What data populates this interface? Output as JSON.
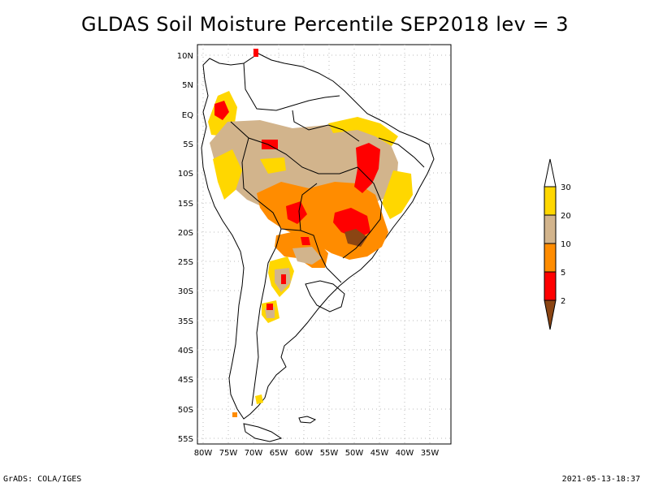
{
  "title": "GLDAS Soil Moisture Percentile SEP2018 lev = 3",
  "footer": {
    "left": "GrADS: COLA/IGES",
    "right": "2021-05-13-18:37"
  },
  "axes": {
    "lat_ticks": [
      "10N",
      "5N",
      "EQ",
      "5S",
      "10S",
      "15S",
      "20S",
      "25S",
      "30S",
      "35S",
      "40S",
      "45S",
      "50S",
      "55S"
    ],
    "lon_ticks": [
      "80W",
      "75W",
      "70W",
      "65W",
      "60W",
      "55W",
      "50W",
      "45W",
      "40W",
      "35W"
    ]
  },
  "legend": {
    "levels": [
      "2",
      "5",
      "10",
      "20",
      "30"
    ],
    "colors": {
      "below_2": "#8b4513",
      "2_5": "#ff0000",
      "5_10": "#ff8c00",
      "10_20": "#d2b48c",
      "20_30": "#ffd700",
      "above_30": "#ffffff"
    }
  },
  "map_data": {
    "region": "South America",
    "field": "soil moisture percentile",
    "dryness_areas": [
      {
        "name": "northern-colombia-andes",
        "level": "2_5"
      },
      {
        "name": "amazon-basin",
        "level": "10_20"
      },
      {
        "name": "central-brazil",
        "level": "5_10"
      },
      {
        "name": "northeast-brazil-core",
        "level": "2_5"
      },
      {
        "name": "southeast-brazil-core",
        "level": "below_2"
      },
      {
        "name": "paraguay-bolivia",
        "level": "5_10"
      },
      {
        "name": "northern-argentina",
        "level": "10_20"
      }
    ]
  }
}
